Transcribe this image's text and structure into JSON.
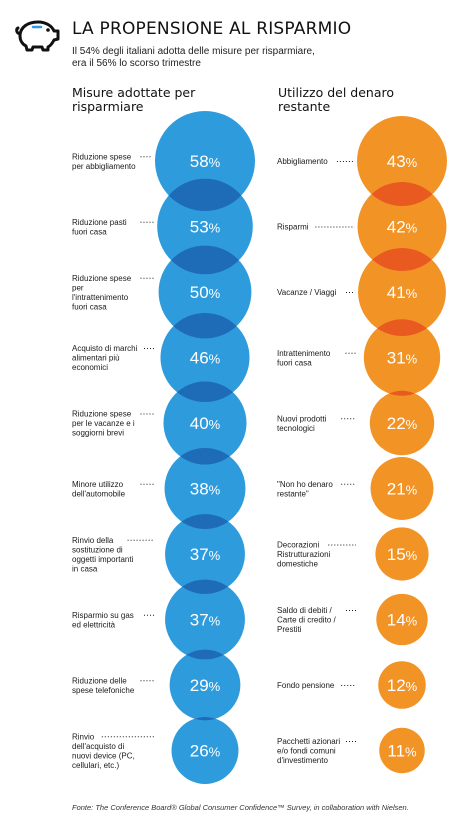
{
  "header": {
    "title": "LA PROPENSIONE AL RISPARMIO",
    "subtitle": "Il 54% degli italiani adotta delle misure per risparmiare, era il 56% lo scorso trimestre"
  },
  "colors": {
    "blue": "#2e9bdc",
    "blue_overlap": "#1e6bb8",
    "orange": "#f29326",
    "orange_overlap": "#e95a20"
  },
  "icons": {
    "logo": "piggy-bank-icon"
  },
  "chart_data": [
    {
      "type": "bubble-column",
      "title": "Misure adottate per risparmiare",
      "labels": [
        "Riduzione spese per abbigliamento",
        "Riduzione pasti fuori casa",
        "Riduzione spese per l'intrattenimento fuori casa",
        "Acquisto di marchi alimentari più economici",
        "Riduzione spese per le vacanze e i soggiorni brevi",
        "Minore utilizzo dell'automobile",
        "Rinvio della sostituzione di oggetti importanti in casa",
        "Risparmio su gas ed elettricità",
        "Riduzione delle spese telefoniche",
        "Rinvio dell'acquisto di nuovi device (PC, cellulari, etc.)"
      ],
      "values": [
        58,
        53,
        50,
        46,
        40,
        38,
        37,
        37,
        29,
        26
      ],
      "unit": "%"
    },
    {
      "type": "bubble-column",
      "title": "Utilizzo del denaro restante",
      "labels": [
        "Abbigliamento",
        "Risparmi",
        "Vacanze / Viaggi",
        "Intrattenimento fuori casa",
        "Nuovi prodotti tecnologici",
        "\"Non ho denaro restante\"",
        "Decorazioni Ristrutturazioni domestiche",
        "Saldo di debiti / Carte di credito / Prestiti",
        "Fondo pensione",
        "Pacchetti azionari e/o fondi comuni d'investimento"
      ],
      "values": [
        43,
        42,
        41,
        31,
        22,
        21,
        15,
        14,
        12,
        11
      ],
      "unit": "%"
    }
  ],
  "footer": {
    "source": "Fonte: The Conference Board® Global Consumer Confidence™ Survey, in collaboration with Nielsen."
  }
}
